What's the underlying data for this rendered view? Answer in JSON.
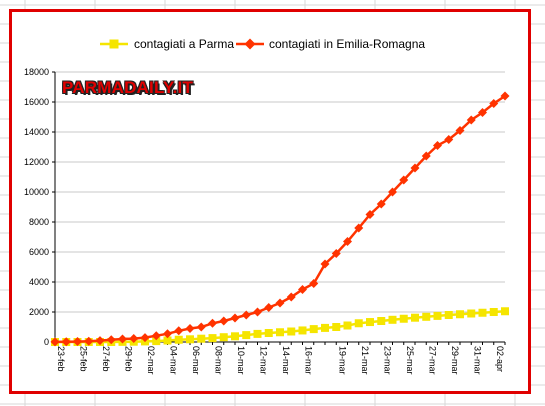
{
  "logo_text": "PARMADAILY.IT",
  "colors": {
    "parma": "#f5e500",
    "emilia": "#ff3300",
    "frame": "#e00000",
    "sheet_grid": "#d7d7d7"
  },
  "chart_data": {
    "type": "line",
    "title": "",
    "xlabel": "",
    "ylabel": "",
    "ylim": [
      0,
      18000
    ],
    "yticks": [
      0,
      2000,
      4000,
      6000,
      8000,
      10000,
      12000,
      14000,
      16000,
      18000
    ],
    "grid": true,
    "legend_position": "top",
    "categories": [
      "23-feb",
      "24-feb",
      "25-feb",
      "26-feb",
      "27-feb",
      "28-feb",
      "29-feb",
      "01-mar",
      "02-mar",
      "03-mar",
      "04-mar",
      "05-mar",
      "06-mar",
      "07-mar",
      "08-mar",
      "09-mar",
      "10-mar",
      "11-mar",
      "12-mar",
      "13-mar",
      "14-mar",
      "15-mar",
      "16-mar",
      "17-mar",
      "18-mar",
      "19-mar",
      "20-mar",
      "21-mar",
      "22-mar",
      "23-mar",
      "24-mar",
      "25-mar",
      "26-mar",
      "27-mar",
      "28-mar",
      "29-mar",
      "30-mar",
      "31-mar",
      "01-apr",
      "02-apr",
      "03-apr"
    ],
    "tick_labels_shown": [
      "23-feb",
      "25-feb",
      "27-feb",
      "29-feb",
      "02-mar",
      "04-mar",
      "06-mar",
      "08-mar",
      "10-mar",
      "12-mar",
      "14-mar",
      "16-mar",
      "19-mar",
      "21-mar",
      "23-mar",
      "25-mar",
      "27-mar",
      "29-mar",
      "31-mar",
      "02-apr"
    ],
    "series": [
      {
        "name": "contagiati a Parma",
        "color": "#f5e500",
        "marker": "square",
        "values": [
          0,
          0,
          0,
          0,
          0,
          0,
          10,
          20,
          40,
          60,
          100,
          150,
          180,
          220,
          260,
          320,
          380,
          460,
          540,
          600,
          650,
          700,
          770,
          860,
          940,
          1000,
          1100,
          1250,
          1330,
          1400,
          1480,
          1550,
          1620,
          1680,
          1740,
          1800,
          1850,
          1900,
          1950,
          2000,
          2050
        ]
      },
      {
        "name": "contagiati in Emilia-Romagna",
        "color": "#ff3300",
        "marker": "diamond",
        "values": [
          10,
          20,
          30,
          50,
          90,
          150,
          200,
          230,
          290,
          420,
          550,
          750,
          900,
          1000,
          1250,
          1400,
          1600,
          1800,
          2000,
          2300,
          2600,
          3000,
          3500,
          3900,
          5200,
          5900,
          6700,
          7600,
          8500,
          9200,
          10000,
          10800,
          11600,
          12400,
          13100,
          13500,
          14100,
          14800,
          15300,
          15900,
          16400
        ]
      }
    ]
  }
}
